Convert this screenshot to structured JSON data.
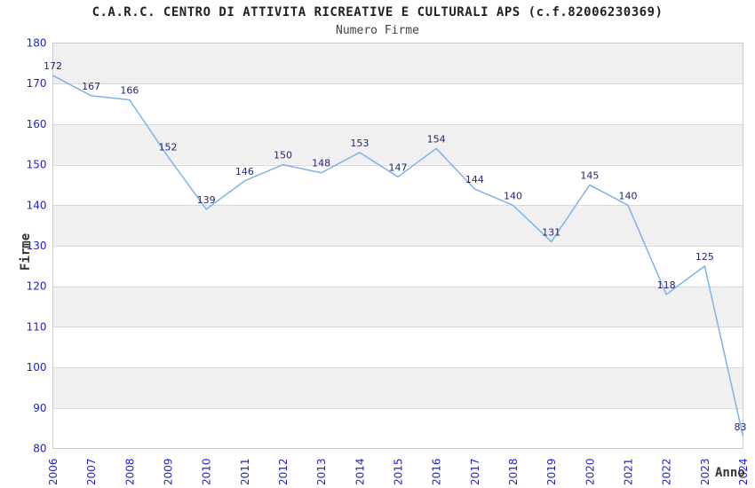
{
  "chart_data": {
    "type": "line",
    "title": "C.A.R.C. CENTRO DI ATTIVITA RICREATIVE E CULTURALI APS (c.f.82006230369)",
    "subtitle": "Numero Firme",
    "xlabel": "Anno",
    "ylabel": "Firme",
    "categories": [
      "2006",
      "2007",
      "2008",
      "2009",
      "2010",
      "2011",
      "2012",
      "2013",
      "2014",
      "2015",
      "2016",
      "2017",
      "2018",
      "2019",
      "2020",
      "2021",
      "2022",
      "2023",
      "2024"
    ],
    "values": [
      172,
      167,
      166,
      152,
      139,
      146,
      150,
      148,
      153,
      147,
      154,
      144,
      140,
      131,
      145,
      140,
      118,
      125,
      83
    ],
    "ylim": [
      80,
      180
    ],
    "ytick_step": 10,
    "yticks": [
      80,
      90,
      100,
      110,
      120,
      130,
      140,
      150,
      160,
      170,
      180
    ],
    "grid": "horizontal",
    "legend": "none",
    "bands": "alternating horizontal, gray on top band 170-180",
    "colors": {
      "line": "#7fb2e8",
      "data_label": "#26266e",
      "tick_label": "#2222cc",
      "band_gray": "#f0f0f0",
      "band_white": "#ffffff",
      "gridline": "#d9d9d9",
      "plot_border": "#cccccc",
      "title_text": "#222222",
      "axis_title": "#333333"
    }
  }
}
